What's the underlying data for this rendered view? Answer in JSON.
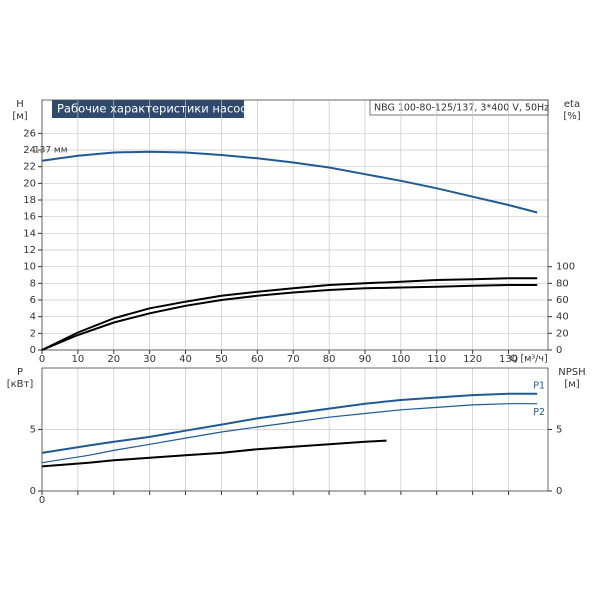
{
  "chart_data": [
    {
      "type": "line",
      "title": "Рабочие характеристики насоса",
      "subtitle": "NBG 100-80-125/137, 3*400 V, 50Hz",
      "y_label": "H",
      "y_unit": "[м]",
      "y2_label": "eta",
      "y2_unit": "[%]",
      "x_label": "Q [м³/ч]",
      "xlim": [
        0,
        141
      ],
      "xticks": [
        0,
        10,
        20,
        30,
        40,
        50,
        60,
        70,
        80,
        90,
        100,
        110,
        120,
        130
      ],
      "ylim": [
        0,
        30
      ],
      "yticks": [
        0,
        2,
        4,
        6,
        8,
        10,
        12,
        14,
        16,
        18,
        20,
        22,
        24,
        26
      ],
      "y2lim": [
        0,
        300
      ],
      "y2ticks": [
        0,
        20,
        40,
        60,
        80,
        100
      ],
      "grid": true,
      "series": [
        {
          "name": "137 мм",
          "color": "#1f5a96",
          "x": [
            0,
            10,
            20,
            30,
            40,
            50,
            60,
            70,
            80,
            90,
            100,
            110,
            120,
            130,
            138
          ],
          "values": [
            22.7,
            23.3,
            23.7,
            23.8,
            23.7,
            23.4,
            23.0,
            22.5,
            21.9,
            21.1,
            20.3,
            19.4,
            18.4,
            17.4,
            16.5
          ]
        },
        {
          "color": "#000000",
          "axis": "y2",
          "x": [
            0,
            10,
            20,
            30,
            40,
            50,
            60,
            70,
            80,
            90,
            100,
            110,
            120,
            130,
            138
          ],
          "values": [
            0,
            21,
            38,
            50,
            58,
            65,
            70,
            74,
            78,
            80,
            82,
            84,
            85,
            86,
            86
          ]
        },
        {
          "color": "#000000",
          "axis": "y2",
          "x": [
            0,
            10,
            20,
            30,
            40,
            50,
            60,
            70,
            80,
            90,
            100,
            110,
            120,
            130,
            138
          ],
          "values": [
            0,
            18,
            33,
            44,
            53,
            60,
            65,
            69,
            72,
            74,
            75,
            76,
            77,
            78,
            78
          ]
        }
      ]
    },
    {
      "type": "line",
      "y_label": "P",
      "y_unit": "[кВт]",
      "y2_label": "NPSH",
      "y2_unit": "[м]",
      "xlim": [
        0,
        141
      ],
      "xticks": [
        0,
        10,
        20,
        30,
        40,
        50,
        60,
        70,
        80,
        90,
        100,
        110,
        120,
        130
      ],
      "ylim": [
        0,
        10
      ],
      "yticks": [
        0,
        5
      ],
      "y2lim": [
        0,
        10
      ],
      "y2ticks": [
        0,
        5
      ],
      "grid": true,
      "series": [
        {
          "name": "P1",
          "color": "#1f5a96",
          "x": [
            0,
            13,
            20,
            30,
            40,
            50,
            60,
            70,
            80,
            90,
            100,
            110,
            120,
            130,
            138
          ],
          "values": [
            3.1,
            3.7,
            4.0,
            4.4,
            4.9,
            5.4,
            5.9,
            6.3,
            6.7,
            7.1,
            7.4,
            7.6,
            7.8,
            7.9,
            7.9
          ]
        },
        {
          "name": "P2",
          "color": "#1f5a96",
          "x": [
            0,
            13,
            20,
            30,
            40,
            50,
            60,
            70,
            80,
            90,
            100,
            110,
            120,
            130,
            138
          ],
          "values": [
            2.3,
            2.9,
            3.3,
            3.8,
            4.3,
            4.8,
            5.2,
            5.6,
            6.0,
            6.3,
            6.6,
            6.8,
            7.0,
            7.1,
            7.1
          ]
        },
        {
          "color": "#000000",
          "axis": "y2",
          "x": [
            0,
            13,
            20,
            30,
            40,
            50,
            60,
            70,
            80,
            90,
            96
          ],
          "values": [
            2.0,
            2.3,
            2.5,
            2.7,
            2.9,
            3.1,
            3.4,
            3.6,
            3.8,
            4.0,
            4.1
          ]
        }
      ]
    }
  ]
}
